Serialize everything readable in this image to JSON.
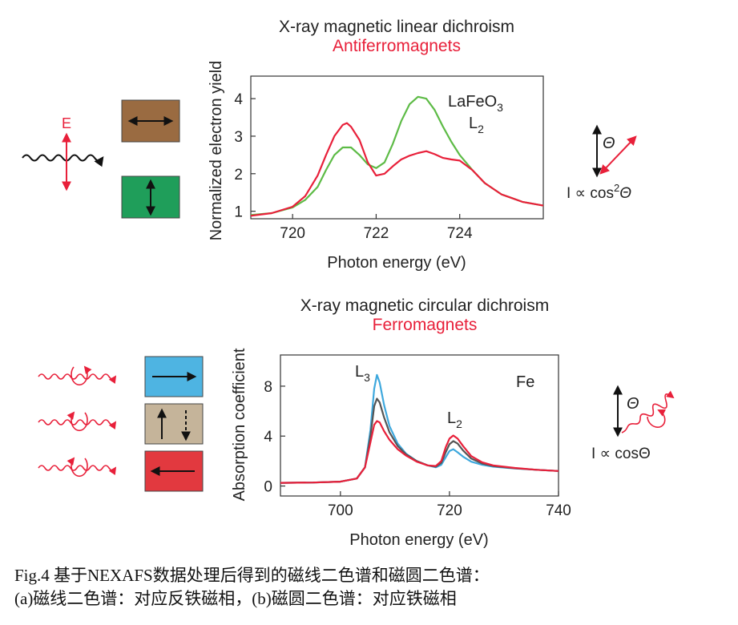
{
  "panel_a": {
    "title": "X-ray magnetic linear dichroism",
    "subtitle": "Antiferromagnets",
    "e_label": "E",
    "formula_prefix": "I ∝ cos",
    "formula_power": "2",
    "formula_suffix": "Θ",
    "theta": "Θ"
  },
  "panel_b": {
    "title": "X-ray magnetic circular dichroism",
    "subtitle": "Ferromagnets",
    "formula": "I ∝ cosΘ",
    "theta": "Θ"
  },
  "caption": {
    "line1": "Fig.4 基于NEXAFS数据处理后得到的磁线二色谱和磁圆二色谱：",
    "line2": "(a)磁线二色谱：对应反铁磁相，(b)磁圆二色谱：对应铁磁相"
  },
  "colors": {
    "red": "#e8203a",
    "green": "#5dbb46",
    "blue": "#3ea8dd",
    "dark": "#555555",
    "brown": "#9a6b41",
    "teal": "#1f9e5a",
    "box_blue": "#4eb4e2",
    "box_beige": "#c5b49a",
    "box_red": "#e2393f"
  },
  "chart_data": [
    {
      "type": "line",
      "xlabel": "Photon energy (eV)",
      "ylabel": "Normalized electron yield",
      "xlim": [
        719,
        726
      ],
      "ylim": [
        0.8,
        4.6
      ],
      "xticks": [
        720,
        722,
        724
      ],
      "yticks": [
        1,
        2,
        3,
        4
      ],
      "annotation_main": "LaFeO",
      "annotation_sub": "3",
      "edge_main": "L",
      "edge_sub": "2",
      "series": [
        {
          "color": "#5dbb46",
          "x": [
            719.0,
            719.5,
            720.0,
            720.3,
            720.6,
            720.8,
            721.0,
            721.2,
            721.4,
            721.6,
            721.8,
            722.0,
            722.2,
            722.4,
            722.6,
            722.8,
            723.0,
            723.2,
            723.4,
            723.6,
            723.8,
            724.0,
            724.3,
            724.6,
            725.0,
            725.5,
            726.0
          ],
          "y": [
            0.9,
            0.95,
            1.1,
            1.3,
            1.65,
            2.1,
            2.5,
            2.7,
            2.7,
            2.5,
            2.25,
            2.15,
            2.3,
            2.8,
            3.4,
            3.85,
            4.05,
            4.0,
            3.7,
            3.25,
            2.85,
            2.5,
            2.1,
            1.75,
            1.45,
            1.25,
            1.15
          ]
        },
        {
          "color": "#e8203a",
          "x": [
            719.0,
            719.5,
            720.0,
            720.3,
            720.6,
            720.8,
            721.0,
            721.2,
            721.3,
            721.4,
            721.6,
            721.8,
            722.0,
            722.2,
            722.4,
            722.6,
            722.8,
            723.0,
            723.2,
            723.4,
            723.6,
            723.8,
            724.0,
            724.3,
            724.6,
            725.0,
            725.5,
            726.0
          ],
          "y": [
            0.88,
            0.95,
            1.12,
            1.4,
            1.95,
            2.5,
            3.0,
            3.3,
            3.35,
            3.25,
            2.9,
            2.3,
            1.95,
            2.0,
            2.2,
            2.38,
            2.48,
            2.55,
            2.6,
            2.52,
            2.42,
            2.38,
            2.35,
            2.1,
            1.75,
            1.45,
            1.25,
            1.15
          ]
        }
      ]
    },
    {
      "type": "line",
      "xlabel": "Photon energy (eV)",
      "ylabel": "Absorption coefficient",
      "xlim": [
        689,
        740
      ],
      "ylim": [
        -0.8,
        10.5
      ],
      "xticks": [
        700,
        720,
        740
      ],
      "yticks": [
        0,
        4,
        8
      ],
      "annotation": "Fe",
      "edge1_main": "L",
      "edge1_sub": "3",
      "edge2_main": "L",
      "edge2_sub": "2",
      "series": [
        {
          "color": "#3ea8dd",
          "x": [
            689,
            695,
            700,
            703,
            704.5,
            705.5,
            706.2,
            706.7,
            707.2,
            708,
            709,
            710.5,
            712,
            714,
            716,
            717.5,
            718.5,
            719.3,
            720,
            720.7,
            721.5,
            722.5,
            724,
            726,
            728,
            732,
            736,
            740
          ],
          "y": [
            0.25,
            0.28,
            0.35,
            0.6,
            1.5,
            4.5,
            7.8,
            8.9,
            8.3,
            6.5,
            4.8,
            3.4,
            2.6,
            2.0,
            1.65,
            1.5,
            1.7,
            2.3,
            2.8,
            2.95,
            2.7,
            2.35,
            1.95,
            1.7,
            1.55,
            1.4,
            1.3,
            1.2
          ]
        },
        {
          "color": "#555555",
          "x": [
            689,
            695,
            700,
            703,
            704.5,
            705.5,
            706.2,
            706.7,
            707.2,
            708,
            709,
            710.5,
            712,
            714,
            716,
            717.5,
            718.5,
            719.3,
            720,
            720.7,
            721.5,
            722.5,
            724,
            726,
            728,
            732,
            736,
            740
          ],
          "y": [
            0.25,
            0.28,
            0.35,
            0.6,
            1.5,
            4.0,
            6.4,
            7.0,
            6.7,
            5.5,
            4.3,
            3.2,
            2.55,
            2.0,
            1.65,
            1.55,
            1.85,
            2.7,
            3.35,
            3.6,
            3.4,
            2.85,
            2.2,
            1.8,
            1.6,
            1.42,
            1.3,
            1.2
          ]
        },
        {
          "color": "#e8203a",
          "x": [
            689,
            695,
            700,
            703,
            704.5,
            705.5,
            706.2,
            706.7,
            707.2,
            708,
            709,
            710.5,
            712,
            714,
            716,
            717.5,
            718.5,
            719.3,
            720,
            720.7,
            721.5,
            722.5,
            724,
            726,
            728,
            732,
            736,
            740
          ],
          "y": [
            0.25,
            0.28,
            0.35,
            0.6,
            1.5,
            3.5,
            4.9,
            5.2,
            5.1,
            4.4,
            3.7,
            2.95,
            2.45,
            1.95,
            1.65,
            1.6,
            2.0,
            3.1,
            3.8,
            4.05,
            3.8,
            3.2,
            2.4,
            1.9,
            1.65,
            1.45,
            1.3,
            1.2
          ]
        }
      ]
    }
  ]
}
